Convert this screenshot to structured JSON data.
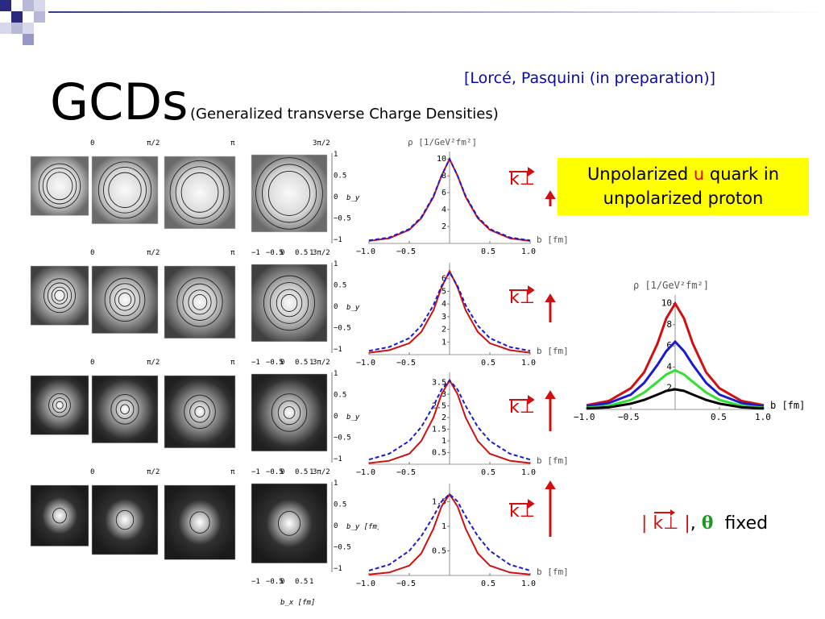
{
  "header": {
    "title": "GCDs",
    "subtitle": "(Generalized transverse Charge Densities)",
    "reference": "[Lorcé, Pasquini (in preparation)]"
  },
  "callout": {
    "line1_pre": "Unpolarized ",
    "line1_quark": "u",
    "line1_post": " quark in",
    "line2": "unpolarized proton"
  },
  "kperp": {
    "label": "k⊥"
  },
  "fixed_note": {
    "bar1": "|",
    "kperp": "k⊥",
    "bar2": "|",
    "comma": ",",
    "theta": "θ",
    "text": "fixed"
  },
  "density_panels": {
    "angle_labels": [
      "0",
      "π/2",
      "π",
      "3π/2"
    ],
    "by_ticks": [
      "1",
      "0.5",
      "0",
      "−0.5",
      "−1"
    ],
    "bx_ticks": [
      "−1",
      "−0.5",
      "0",
      "0.5",
      "1"
    ],
    "by_label": "b_y",
    "by_label_last": "b_y [fm]",
    "bx_label": "b_x [fm]"
  },
  "colors": {
    "red": "#d01010",
    "blue": "#1a1ad0",
    "green": "#30e030",
    "black": "#000000",
    "ref_blue": "#0a0aa8"
  },
  "chart_data": [
    {
      "type": "line",
      "ylabel": "ρ [1/GeV²fm²]",
      "xlabel": "b [fm]",
      "xlim": [
        -1,
        1
      ],
      "ylim": [
        0,
        10.5
      ],
      "xticks": [
        "−1.0",
        "−0.5",
        "0.5",
        "1.0"
      ],
      "yticks": [
        2,
        4,
        6,
        8,
        10
      ],
      "series": [
        {
          "x": [
            -1,
            -0.75,
            -0.5,
            -0.35,
            -0.2,
            -0.1,
            0,
            0.1,
            0.2,
            0.35,
            0.5,
            0.75,
            1
          ],
          "values": [
            0.3,
            0.6,
            1.6,
            3.0,
            5.5,
            8.0,
            10.0,
            8.0,
            5.5,
            3.0,
            1.6,
            0.6,
            0.3
          ]
        },
        {
          "x": [
            -1,
            -0.75,
            -0.5,
            -0.35,
            -0.2,
            -0.1,
            0,
            0.1,
            0.2,
            0.35,
            0.5,
            0.75,
            1
          ],
          "values": [
            0.35,
            0.7,
            1.7,
            3.1,
            5.6,
            8.0,
            10.0,
            8.0,
            5.6,
            3.1,
            1.7,
            0.7,
            0.35
          ]
        }
      ]
    },
    {
      "type": "line",
      "xlabel": "b [fm]",
      "xlim": [
        -1,
        1
      ],
      "ylim": [
        0,
        7
      ],
      "xticks": [
        "−1.0",
        "−0.5",
        "0.5",
        "1.0"
      ],
      "yticks": [
        1,
        2,
        3,
        4,
        5,
        6
      ],
      "series": [
        {
          "x": [
            -1,
            -0.75,
            -0.5,
            -0.35,
            -0.2,
            -0.1,
            0,
            0.1,
            0.2,
            0.35,
            0.5,
            0.75,
            1
          ],
          "values": [
            0.15,
            0.35,
            0.9,
            1.8,
            3.5,
            5.3,
            6.6,
            5.3,
            3.5,
            1.8,
            0.9,
            0.35,
            0.15
          ]
        },
        {
          "x": [
            -1,
            -0.75,
            -0.5,
            -0.35,
            -0.2,
            -0.1,
            0,
            0.1,
            0.2,
            0.35,
            0.5,
            0.75,
            1
          ],
          "values": [
            0.3,
            0.6,
            1.3,
            2.3,
            3.9,
            5.4,
            6.5,
            5.4,
            3.9,
            2.3,
            1.3,
            0.6,
            0.3
          ]
        }
      ]
    },
    {
      "type": "line",
      "xlabel": "b [fm]",
      "xlim": [
        -1,
        1
      ],
      "ylim": [
        0,
        3.8
      ],
      "xticks": [
        "−1.0",
        "−0.5",
        "0.5",
        "1.0"
      ],
      "yticks": [
        0.5,
        1.0,
        1.5,
        2.0,
        2.5,
        3.0,
        3.5
      ],
      "series": [
        {
          "x": [
            -1,
            -0.75,
            -0.5,
            -0.35,
            -0.2,
            -0.1,
            0,
            0.1,
            0.2,
            0.35,
            0.5,
            0.75,
            1
          ],
          "values": [
            0.05,
            0.15,
            0.45,
            1.0,
            2.0,
            3.0,
            3.6,
            3.0,
            2.0,
            1.0,
            0.45,
            0.15,
            0.05
          ]
        },
        {
          "x": [
            -1,
            -0.75,
            -0.5,
            -0.35,
            -0.2,
            -0.1,
            0,
            0.1,
            0.2,
            0.35,
            0.5,
            0.75,
            1
          ],
          "values": [
            0.2,
            0.45,
            1.0,
            1.6,
            2.5,
            3.2,
            3.6,
            3.2,
            2.5,
            1.6,
            1.0,
            0.45,
            0.2
          ]
        }
      ]
    },
    {
      "type": "line",
      "xlabel": "b [fm]",
      "xlim": [
        -1,
        1
      ],
      "ylim": [
        0,
        1.8
      ],
      "xticks": [
        "−1.0",
        "−0.5",
        "0.5",
        "1.0"
      ],
      "yticks": [
        0.5,
        1.0,
        1.5
      ],
      "series": [
        {
          "x": [
            -1,
            -0.75,
            -0.5,
            -0.35,
            -0.2,
            -0.1,
            0,
            0.1,
            0.2,
            0.35,
            0.5,
            0.75,
            1
          ],
          "values": [
            0.02,
            0.06,
            0.2,
            0.45,
            0.95,
            1.4,
            1.65,
            1.4,
            0.95,
            0.45,
            0.2,
            0.06,
            0.02
          ]
        },
        {
          "x": [
            -1,
            -0.75,
            -0.5,
            -0.35,
            -0.2,
            -0.1,
            0,
            0.1,
            0.2,
            0.35,
            0.5,
            0.75,
            1
          ],
          "values": [
            0.1,
            0.22,
            0.5,
            0.8,
            1.2,
            1.5,
            1.65,
            1.5,
            1.2,
            0.8,
            0.5,
            0.22,
            0.1
          ]
        }
      ]
    },
    {
      "type": "line",
      "ylabel": "ρ [1/GeV²fm²]",
      "xlabel": "b [fm]",
      "xlim": [
        -1,
        1
      ],
      "ylim": [
        0,
        10.5
      ],
      "xticks": [
        "−1.0",
        "−0.5",
        "0.5",
        "1.0"
      ],
      "yticks": [
        2,
        4,
        6,
        8,
        10
      ],
      "series": [
        {
          "x": [
            -1,
            -0.75,
            -0.5,
            -0.35,
            -0.2,
            -0.1,
            0,
            0.1,
            0.2,
            0.35,
            0.5,
            0.75,
            1
          ],
          "values": [
            0.4,
            0.8,
            2.0,
            3.5,
            6.2,
            8.6,
            10.0,
            8.6,
            6.2,
            3.5,
            2.0,
            0.8,
            0.4
          ]
        },
        {
          "x": [
            -1,
            -0.75,
            -0.5,
            -0.35,
            -0.2,
            -0.1,
            0,
            0.1,
            0.2,
            0.35,
            0.5,
            0.75,
            1
          ],
          "values": [
            0.3,
            0.6,
            1.4,
            2.5,
            4.2,
            5.5,
            6.4,
            5.5,
            4.2,
            2.5,
            1.4,
            0.6,
            0.3
          ]
        },
        {
          "x": [
            -1,
            -0.75,
            -0.5,
            -0.35,
            -0.2,
            -0.1,
            0,
            0.1,
            0.2,
            0.35,
            0.5,
            0.75,
            1
          ],
          "values": [
            0.15,
            0.35,
            0.9,
            1.6,
            2.6,
            3.3,
            3.7,
            3.3,
            2.6,
            1.6,
            0.9,
            0.35,
            0.15
          ]
        },
        {
          "x": [
            -1,
            -0.75,
            -0.5,
            -0.35,
            -0.2,
            -0.1,
            0,
            0.1,
            0.2,
            0.35,
            0.5,
            0.75,
            1
          ],
          "values": [
            0.1,
            0.2,
            0.55,
            0.9,
            1.4,
            1.75,
            1.9,
            1.75,
            1.4,
            0.9,
            0.55,
            0.2,
            0.1
          ]
        }
      ]
    }
  ]
}
